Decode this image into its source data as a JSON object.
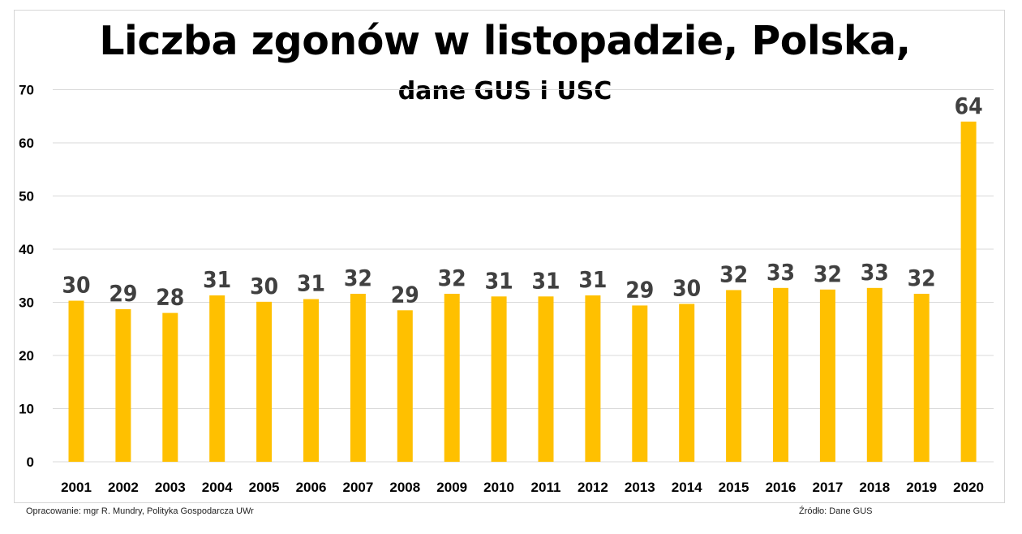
{
  "header": {
    "title": "Liczba zgonów w listopadzie, Polska,",
    "subtitle": "dane GUS i USC"
  },
  "footer": {
    "author": "Opracowanie: mgr R. Mundry, Polityka Gospodarcza UWr",
    "source": "Źródło: Dane GUS"
  },
  "colors": {
    "bar": "#FFC000",
    "grid": "#d9d9d9",
    "label": "#404040",
    "axis_text": "#000000"
  },
  "chart_data": {
    "type": "bar",
    "title": "Liczba zgonów w listopadzie, Polska,",
    "subtitle": "dane GUS i USC",
    "categories": [
      "2001",
      "2002",
      "2003",
      "2004",
      "2005",
      "2006",
      "2007",
      "2008",
      "2009",
      "2010",
      "2011",
      "2012",
      "2013",
      "2014",
      "2015",
      "2016",
      "2017",
      "2018",
      "2019",
      "2020"
    ],
    "values": [
      30.3,
      28.7,
      28.0,
      31.3,
      30.1,
      30.6,
      31.6,
      28.5,
      31.6,
      31.1,
      31.1,
      31.3,
      29.4,
      29.7,
      32.3,
      32.7,
      32.4,
      32.7,
      31.6,
      64.0
    ],
    "data_labels": [
      "30",
      "29",
      "28",
      "31",
      "30",
      "31",
      "32",
      "29",
      "32",
      "31",
      "31",
      "31",
      "29",
      "30",
      "32",
      "33",
      "32",
      "33",
      "32",
      "64"
    ],
    "yticks": [
      "0",
      "10",
      "20",
      "30",
      "40",
      "50",
      "60",
      "70"
    ],
    "ylim": [
      0,
      70
    ],
    "grid": true,
    "legend": "none",
    "xlabel": "",
    "ylabel": ""
  }
}
